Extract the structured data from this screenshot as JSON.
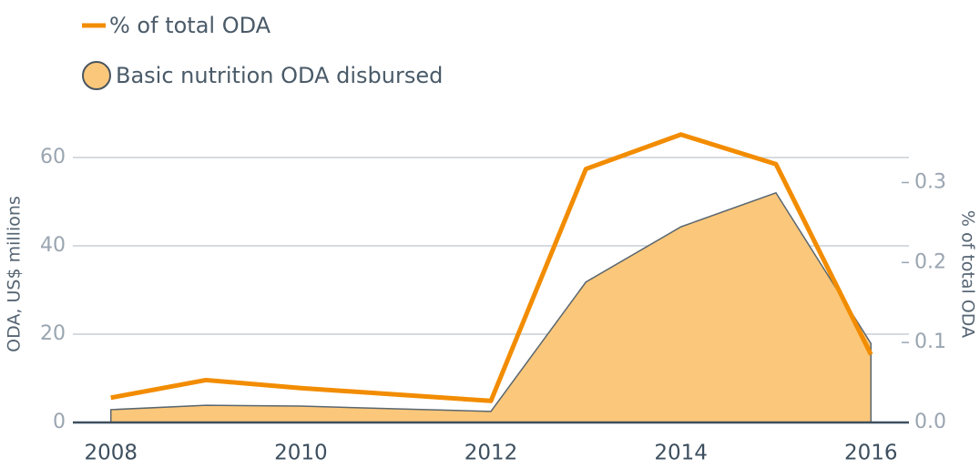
{
  "chart_data": {
    "type": "area",
    "x": [
      2008,
      2009,
      2010,
      2011,
      2012,
      2013,
      2014,
      2015,
      2016
    ],
    "series": [
      {
        "name": "Basic nutrition ODA disbursed",
        "type": "area",
        "color": "#fbc77a",
        "values": [
          2.9,
          3.9,
          3.7,
          3.1,
          2.5,
          31.8,
          44.3,
          52,
          17.9
        ]
      },
      {
        "name": "% of total ODA",
        "type": "line",
        "axis": "y2",
        "color": "#f28c00",
        "values": [
          0.031,
          0.053,
          0.043,
          0.035,
          0.027,
          0.317,
          0.36,
          0.323,
          0.085
        ]
      }
    ],
    "xlim": [
      2007.6,
      2016.4
    ],
    "xticks": [
      2008,
      2010,
      2012,
      2014,
      2016
    ],
    "ylim": [
      0,
      67
    ],
    "yticks": [
      0,
      20,
      40,
      60
    ],
    "y2lim": [
      0,
      0.37
    ],
    "y2ticks": [
      {
        "value": 0,
        "label": "0.0"
      },
      0.1,
      0.2,
      0.3
    ],
    "ylabel": "ODA, US$ millions",
    "y2label": "% of total ODA",
    "grid": true
  }
}
